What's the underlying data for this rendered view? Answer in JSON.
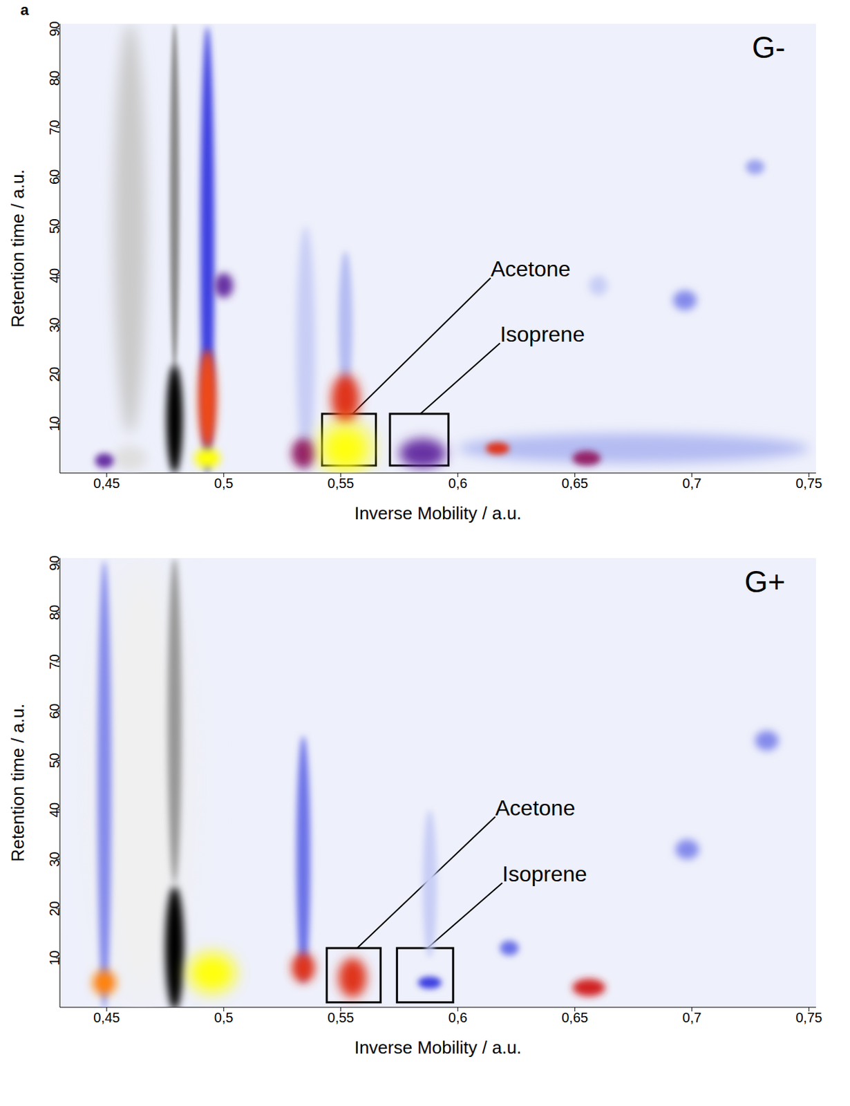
{
  "panel_label": "a",
  "chart_data": [
    {
      "type": "heatmap",
      "title": "G-",
      "x_label": "Inverse Mobility / a.u.",
      "y_label": "Retention time / a.u.",
      "xlim": [
        0.43,
        0.753
      ],
      "ylim": [
        0,
        91
      ],
      "xticks": [
        {
          "value": 0.45,
          "label": "0,45"
        },
        {
          "value": 0.5,
          "label": "0,5"
        },
        {
          "value": 0.55,
          "label": "0,55"
        },
        {
          "value": 0.6,
          "label": "0,6"
        },
        {
          "value": 0.65,
          "label": "0,65"
        },
        {
          "value": 0.7,
          "label": "0,7"
        },
        {
          "value": 0.75,
          "label": "0,75"
        }
      ],
      "yticks": [
        10,
        20,
        30,
        40,
        50,
        60,
        70,
        80,
        90
      ],
      "peaks": [
        {
          "x": 0.675,
          "y": 5,
          "w": 0.15,
          "h": 6,
          "intensity": 0.2
        },
        {
          "x": 0.535,
          "y": 25,
          "w": 0.008,
          "h": 50,
          "intensity": 0.15
        },
        {
          "x": 0.552,
          "y": 30,
          "w": 0.006,
          "h": 30,
          "intensity": 0.2
        },
        {
          "x": 0.46,
          "y": 49.5,
          "w": 0.014,
          "h": 83,
          "intensity": -0.35
        },
        {
          "x": 0.46,
          "y": 3,
          "w": 0.014,
          "h": 5,
          "intensity": -0.25
        },
        {
          "x": 0.479,
          "y": 56,
          "w": 0.004,
          "h": 70,
          "intensity": -0.6
        },
        {
          "x": 0.479,
          "y": 11,
          "w": 0.007,
          "h": 22,
          "intensity": -1
        },
        {
          "x": 0.493,
          "y": 45,
          "w": 0.006,
          "h": 91,
          "intensity": 0.45
        },
        {
          "x": 0.493,
          "y": 15,
          "w": 0.008,
          "h": 20,
          "intensity": 0.75
        },
        {
          "x": 0.493,
          "y": 3,
          "w": 0.011,
          "h": 4,
          "intensity": 1
        },
        {
          "x": 0.449,
          "y": 2.5,
          "w": 0.008,
          "h": 3,
          "intensity": 0.5
        },
        {
          "x": 0.5,
          "y": 38,
          "w": 0.008,
          "h": 5,
          "intensity": 0.5
        },
        {
          "x": 0.534,
          "y": 4,
          "w": 0.01,
          "h": 6,
          "intensity": 0.55
        },
        {
          "x": 0.552,
          "y": 15,
          "w": 0.012,
          "h": 10,
          "intensity": 0.7
        },
        {
          "x": 0.552,
          "y": 5,
          "w": 0.022,
          "h": 10,
          "intensity": 1
        },
        {
          "x": 0.585,
          "y": 4,
          "w": 0.02,
          "h": 6,
          "intensity": 0.5
        },
        {
          "x": 0.617,
          "y": 5,
          "w": 0.01,
          "h": 2.5,
          "intensity": 0.7
        },
        {
          "x": 0.655,
          "y": 3,
          "w": 0.012,
          "h": 3,
          "intensity": 0.55
        },
        {
          "x": 0.66,
          "y": 38,
          "w": 0.008,
          "h": 4,
          "intensity": 0.15
        },
        {
          "x": 0.697,
          "y": 35,
          "w": 0.01,
          "h": 4,
          "intensity": 0.3
        },
        {
          "x": 0.727,
          "y": 62,
          "w": 0.008,
          "h": 3,
          "intensity": 0.25
        }
      ],
      "annotations": [
        {
          "text": "Acetone",
          "label_at": [
            0.614,
            41
          ],
          "points_to": [
            0.555,
            12
          ],
          "box": [
            0.542,
            0.565,
            1.5,
            12
          ]
        },
        {
          "text": "Isoprene",
          "label_at": [
            0.618,
            27.8
          ],
          "points_to": [
            0.584,
            12
          ],
          "box": [
            0.571,
            0.596,
            1.5,
            12
          ]
        }
      ]
    },
    {
      "type": "heatmap",
      "title": "G+",
      "x_label": "Inverse Mobility / a.u.",
      "y_label": "Retention time / a.u.",
      "xlim": [
        0.43,
        0.753
      ],
      "ylim": [
        0,
        91
      ],
      "xticks": [
        {
          "value": 0.45,
          "label": "0,45"
        },
        {
          "value": 0.5,
          "label": "0,5"
        },
        {
          "value": 0.55,
          "label": "0,55"
        },
        {
          "value": 0.6,
          "label": "0,6"
        },
        {
          "value": 0.65,
          "label": "0,65"
        },
        {
          "value": 0.7,
          "label": "0,7"
        },
        {
          "value": 0.75,
          "label": "0,75"
        }
      ],
      "yticks": [
        10,
        20,
        30,
        40,
        50,
        60,
        70,
        80,
        90
      ],
      "peaks": [
        {
          "x": 0.465,
          "y": 45.5,
          "w": 0.04,
          "h": 91,
          "intensity": -0.15
        },
        {
          "x": 0.588,
          "y": 25,
          "w": 0.006,
          "h": 30,
          "intensity": 0.15
        },
        {
          "x": 0.479,
          "y": 58,
          "w": 0.006,
          "h": 66,
          "intensity": -0.55
        },
        {
          "x": 0.479,
          "y": 12,
          "w": 0.008,
          "h": 25,
          "intensity": -1
        },
        {
          "x": 0.449,
          "y": 45,
          "w": 0.006,
          "h": 91,
          "intensity": 0.3
        },
        {
          "x": 0.449,
          "y": 5,
          "w": 0.01,
          "h": 5,
          "intensity": 0.85
        },
        {
          "x": 0.495,
          "y": 7,
          "w": 0.02,
          "h": 8,
          "intensity": 1
        },
        {
          "x": 0.534,
          "y": 30,
          "w": 0.006,
          "h": 50,
          "intensity": 0.35
        },
        {
          "x": 0.534,
          "y": 8,
          "w": 0.01,
          "h": 6,
          "intensity": 0.7
        },
        {
          "x": 0.555,
          "y": 6,
          "w": 0.012,
          "h": 8,
          "intensity": 0.7
        },
        {
          "x": 0.588,
          "y": 5,
          "w": 0.01,
          "h": 2.5,
          "intensity": 0.45
        },
        {
          "x": 0.622,
          "y": 12,
          "w": 0.008,
          "h": 3,
          "intensity": 0.35
        },
        {
          "x": 0.656,
          "y": 4,
          "w": 0.014,
          "h": 3.5,
          "intensity": 0.65
        },
        {
          "x": 0.698,
          "y": 32,
          "w": 0.01,
          "h": 4,
          "intensity": 0.3
        },
        {
          "x": 0.732,
          "y": 54,
          "w": 0.01,
          "h": 4,
          "intensity": 0.3
        }
      ],
      "annotations": [
        {
          "text": "Acetone",
          "label_at": [
            0.616,
            40.1
          ],
          "points_to": [
            0.557,
            12
          ],
          "box": [
            0.544,
            0.567,
            1,
            12
          ]
        },
        {
          "text": "Isoprene",
          "label_at": [
            0.619,
            26.7
          ],
          "points_to": [
            0.587,
            12
          ],
          "box": [
            0.574,
            0.598,
            1,
            12
          ]
        }
      ]
    }
  ]
}
